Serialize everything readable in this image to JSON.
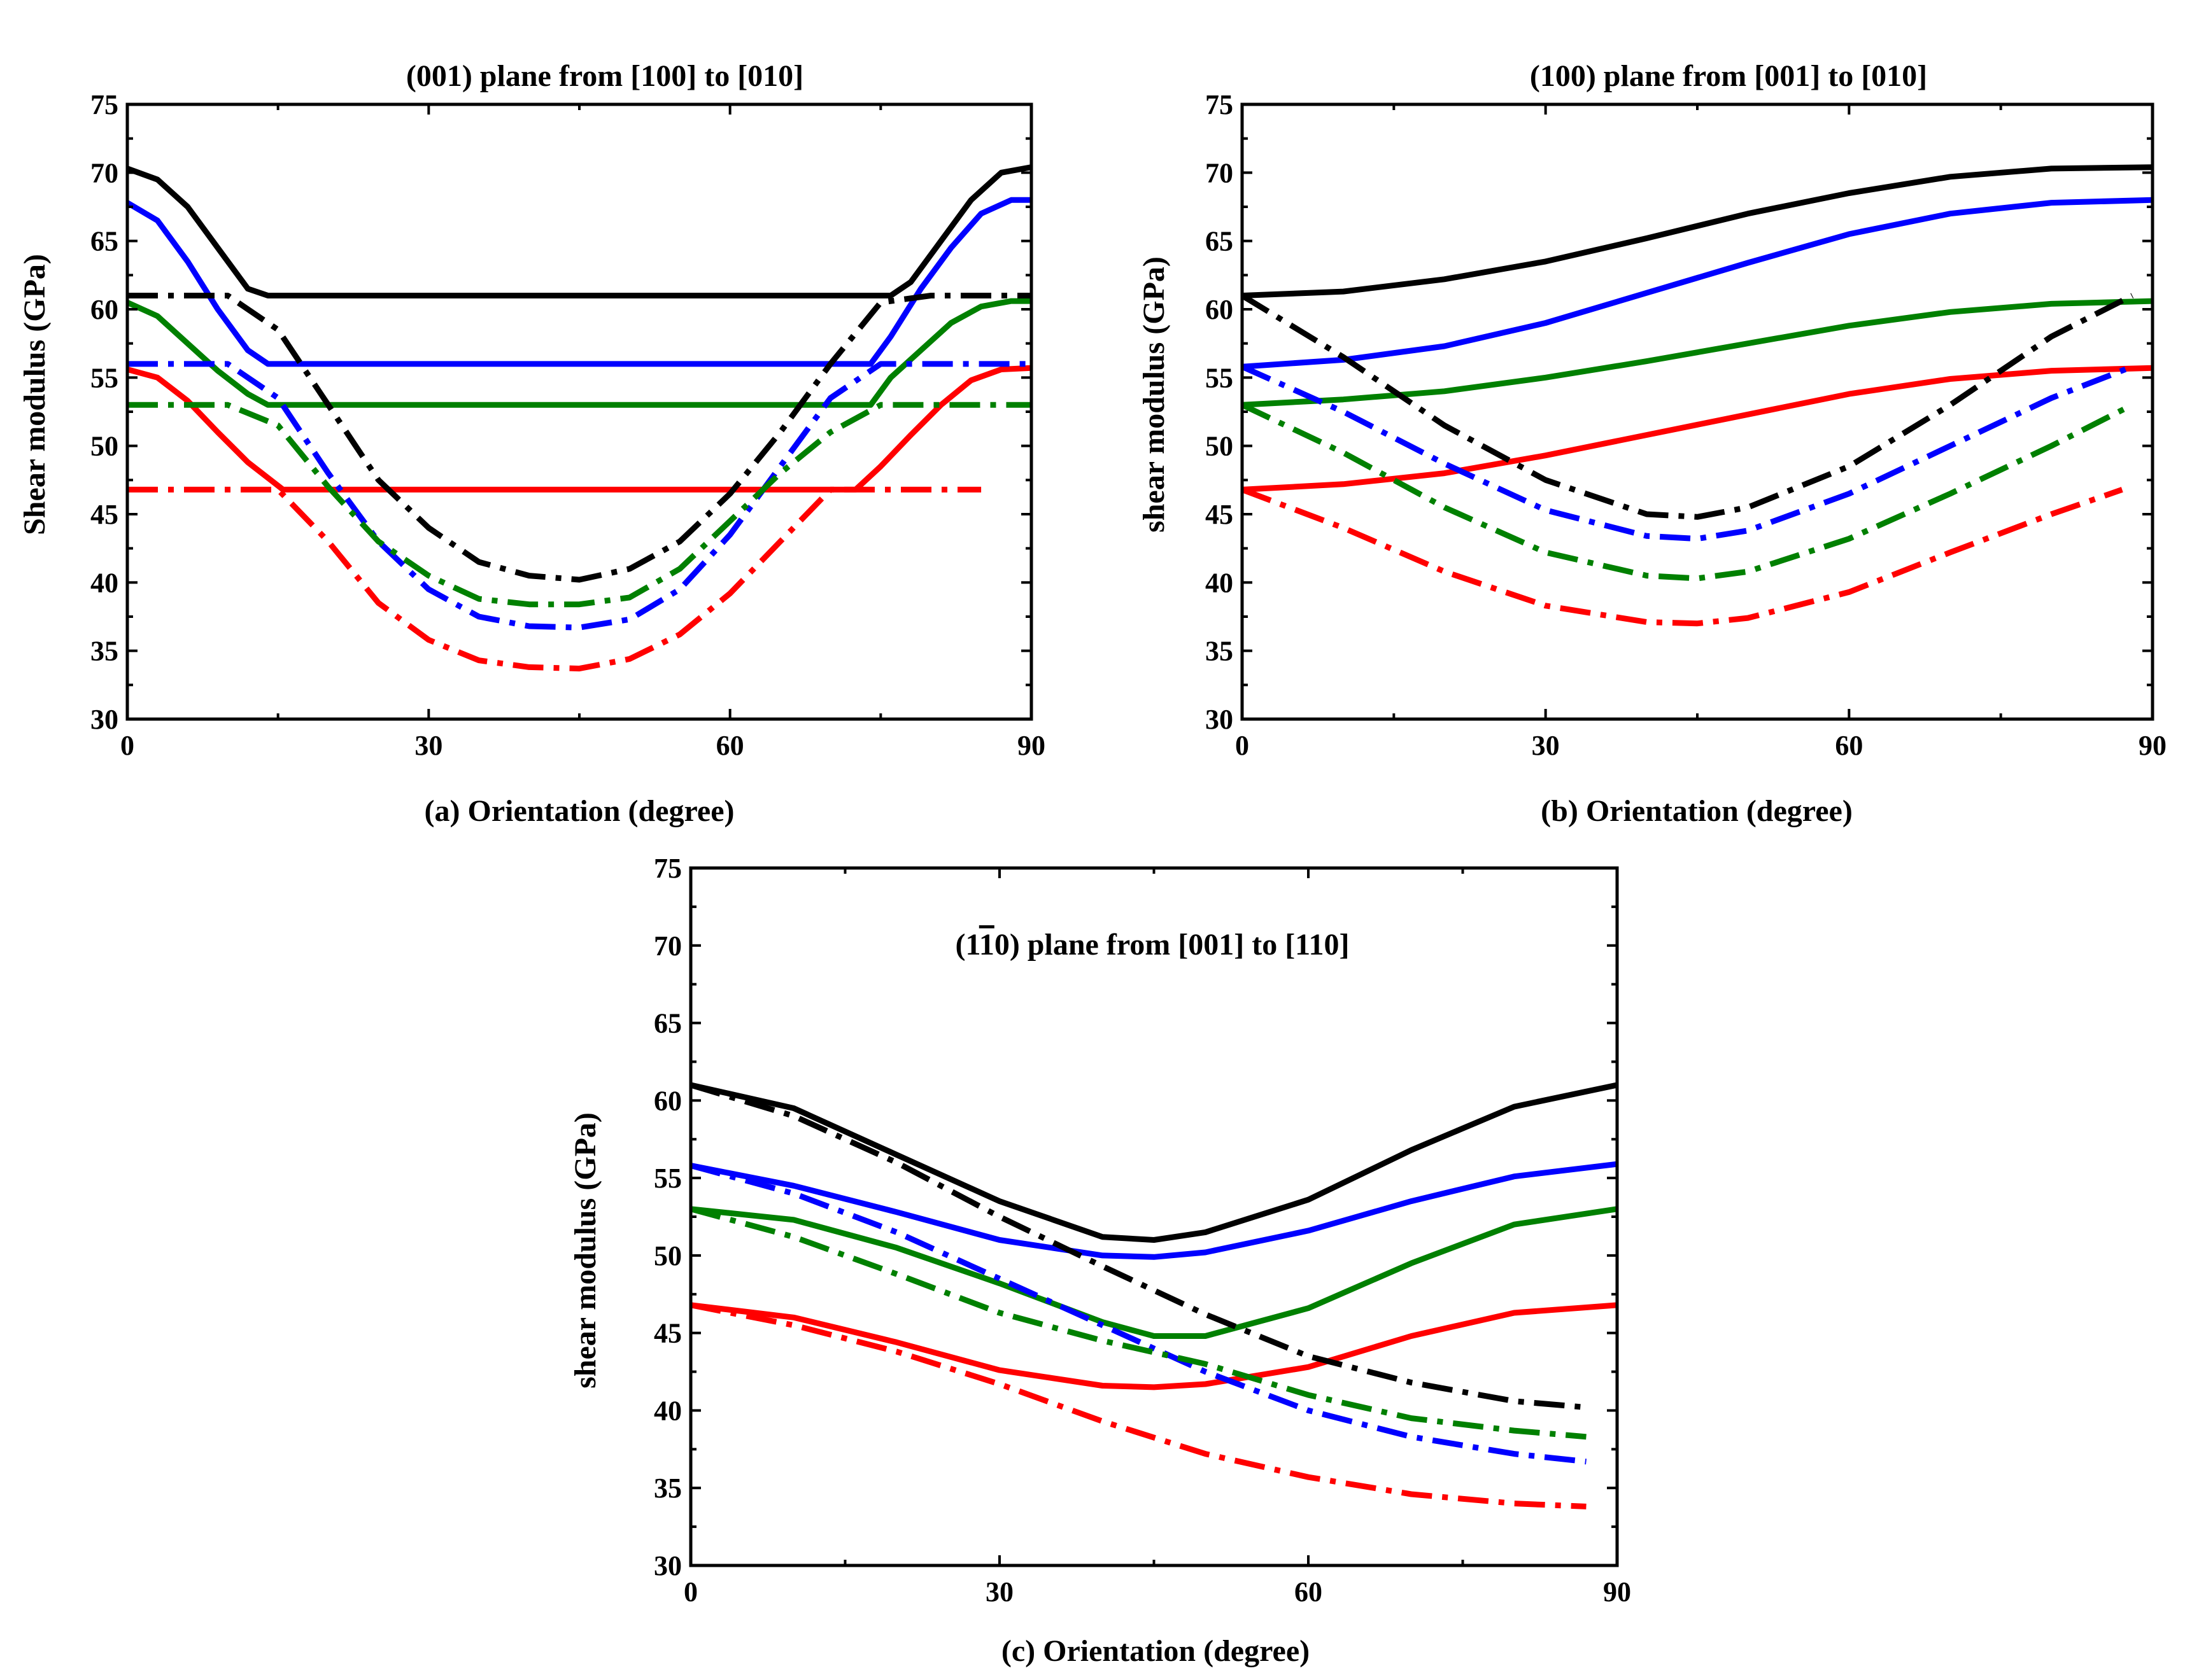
{
  "colors": {
    "black": "#000000",
    "blue": "#0000ff",
    "green": "#008000",
    "red": "#ff0000"
  },
  "chart_data": [
    {
      "type": "line",
      "title": "(001) plane from [100] to [010]",
      "xlabel": "(a) Orientation (degree)",
      "ylabel": "Shear modulus (GPa)",
      "xlim": [
        0,
        90
      ],
      "ylim": [
        30,
        75
      ],
      "xticks": [
        0,
        30,
        60,
        90
      ],
      "yticks": [
        30,
        35,
        40,
        45,
        50,
        55,
        60,
        65,
        70,
        75
      ],
      "series": [
        {
          "name": "black-solid",
          "color": "#000000",
          "style": "solid",
          "x": [
            0,
            3,
            6,
            9,
            12,
            14,
            76,
            78,
            81,
            84,
            87,
            90
          ],
          "y": [
            70.3,
            69.5,
            67.5,
            64.5,
            61.5,
            61,
            61,
            62,
            65,
            68,
            70,
            70.4
          ]
        },
        {
          "name": "blue-solid",
          "color": "#0000ff",
          "style": "solid",
          "x": [
            0,
            3,
            6,
            9,
            12,
            14,
            74,
            76,
            79,
            82,
            85,
            88,
            90
          ],
          "y": [
            67.8,
            66.5,
            63.5,
            60,
            57,
            56,
            56,
            58,
            61.5,
            64.5,
            67,
            68,
            68
          ]
        },
        {
          "name": "green-solid",
          "color": "#008000",
          "style": "solid",
          "x": [
            0,
            3,
            6,
            9,
            12,
            14,
            74,
            76,
            79,
            82,
            85,
            88,
            90
          ],
          "y": [
            60.5,
            59.5,
            57.5,
            55.5,
            53.8,
            53,
            53,
            55,
            57,
            59,
            60.2,
            60.6,
            60.6
          ]
        },
        {
          "name": "red-solid",
          "color": "#ff0000",
          "style": "solid",
          "x": [
            0,
            3,
            6,
            9,
            12,
            15.5,
            72.5,
            75,
            78,
            81,
            84,
            87,
            90
          ],
          "y": [
            55.6,
            55,
            53.3,
            51,
            48.8,
            46.8,
            46.8,
            48.5,
            50.8,
            53,
            54.8,
            55.6,
            55.7
          ]
        },
        {
          "name": "black-dashdot",
          "color": "#000000",
          "style": "dashdot",
          "x": [
            0,
            10,
            15,
            20,
            25,
            30,
            35,
            40,
            45,
            50,
            55,
            60,
            65,
            70,
            75,
            80,
            85,
            90
          ],
          "y": [
            61,
            61,
            58.5,
            53,
            47.5,
            44,
            41.5,
            40.5,
            40.2,
            41,
            43,
            46.5,
            51,
            56,
            60.5,
            61,
            61,
            61
          ]
        },
        {
          "name": "blue-dashdot",
          "color": "#0000ff",
          "style": "dashdot",
          "x": [
            0,
            10,
            15,
            20,
            25,
            30,
            35,
            40,
            45,
            50,
            55,
            60,
            65,
            70,
            75,
            80,
            85,
            90
          ],
          "y": [
            56,
            56,
            53.5,
            48,
            43,
            39.5,
            37.5,
            36.8,
            36.7,
            37.3,
            39.5,
            43.5,
            48.5,
            53.5,
            56,
            56,
            56,
            56
          ]
        },
        {
          "name": "green-dashdot",
          "color": "#008000",
          "style": "dashdot",
          "x": [
            0,
            10,
            15,
            20,
            25,
            30,
            35,
            40,
            45,
            50,
            55,
            60,
            65,
            70,
            75,
            80,
            85,
            90
          ],
          "y": [
            53,
            53,
            51.5,
            47,
            43,
            40.5,
            38.8,
            38.4,
            38.4,
            38.9,
            41,
            44.5,
            48,
            51,
            53,
            53,
            53,
            53
          ]
        },
        {
          "name": "red-dashdot",
          "color": "#ff0000",
          "style": "dashdot",
          "x": [
            0,
            15,
            20,
            25,
            30,
            35,
            40,
            45,
            50,
            55,
            60,
            65,
            70,
            75,
            80,
            85
          ],
          "y": [
            46.8,
            46.8,
            43,
            38.5,
            35.8,
            34.3,
            33.8,
            33.7,
            34.4,
            36.2,
            39.2,
            43,
            46.8,
            46.8,
            46.8,
            46.8
          ]
        }
      ]
    },
    {
      "type": "line",
      "title": "(100) plane from [001] to [010]",
      "xlabel": "(b) Orientation (degree)",
      "ylabel": "shear modulus (GPa)",
      "xlim": [
        0,
        90
      ],
      "ylim": [
        30,
        75
      ],
      "xticks": [
        0,
        30,
        60,
        90
      ],
      "yticks": [
        30,
        35,
        40,
        45,
        50,
        55,
        60,
        65,
        70,
        75
      ],
      "series": [
        {
          "name": "black-solid",
          "color": "#000000",
          "style": "solid",
          "x": [
            0,
            10,
            20,
            30,
            40,
            50,
            60,
            70,
            80,
            90
          ],
          "y": [
            61,
            61.3,
            62.2,
            63.5,
            65.2,
            67,
            68.5,
            69.7,
            70.3,
            70.4
          ]
        },
        {
          "name": "blue-solid",
          "color": "#0000ff",
          "style": "solid",
          "x": [
            0,
            10,
            20,
            30,
            40,
            50,
            60,
            70,
            80,
            90
          ],
          "y": [
            55.8,
            56.3,
            57.3,
            59,
            61.2,
            63.4,
            65.5,
            67,
            67.8,
            68
          ]
        },
        {
          "name": "green-solid",
          "color": "#008000",
          "style": "solid",
          "x": [
            0,
            10,
            20,
            30,
            40,
            50,
            60,
            70,
            80,
            90
          ],
          "y": [
            53,
            53.4,
            54,
            55,
            56.2,
            57.5,
            58.8,
            59.8,
            60.4,
            60.6
          ]
        },
        {
          "name": "red-solid",
          "color": "#ff0000",
          "style": "solid",
          "x": [
            0,
            10,
            20,
            30,
            40,
            50,
            60,
            70,
            80,
            90
          ],
          "y": [
            46.8,
            47.2,
            48,
            49.3,
            50.8,
            52.3,
            53.8,
            54.9,
            55.5,
            55.7
          ]
        },
        {
          "name": "black-dashdot",
          "color": "#000000",
          "style": "dashdot",
          "x": [
            0,
            10,
            20,
            30,
            40,
            45,
            50,
            60,
            70,
            80,
            88
          ],
          "y": [
            61,
            56.5,
            51.5,
            47.5,
            45,
            44.8,
            45.5,
            48.5,
            53,
            58,
            61
          ]
        },
        {
          "name": "blue-dashdot",
          "color": "#0000ff",
          "style": "dashdot",
          "x": [
            0,
            10,
            20,
            30,
            40,
            45,
            50,
            60,
            70,
            80,
            88
          ],
          "y": [
            55.8,
            52.5,
            48.7,
            45.3,
            43.4,
            43.2,
            43.8,
            46.5,
            50,
            53.5,
            55.8
          ]
        },
        {
          "name": "green-dashdot",
          "color": "#008000",
          "style": "dashdot",
          "x": [
            0,
            10,
            20,
            30,
            40,
            45,
            50,
            60,
            70,
            80,
            88
          ],
          "y": [
            53,
            49.5,
            45.5,
            42.2,
            40.5,
            40.3,
            40.8,
            43.2,
            46.5,
            50,
            53
          ]
        },
        {
          "name": "red-dashdot",
          "color": "#ff0000",
          "style": "dashdot",
          "x": [
            0,
            10,
            20,
            30,
            40,
            45,
            50,
            60,
            70,
            80,
            87
          ],
          "y": [
            46.8,
            44,
            40.8,
            38.3,
            37.1,
            37,
            37.4,
            39.3,
            42.2,
            45,
            46.8
          ]
        }
      ]
    },
    {
      "type": "line",
      "title": "(1ī0) plane from [001] to [110]",
      "title_parts": [
        "(1",
        "1",
        "0) plane from [001] to [110]"
      ],
      "xlabel": "(c) Orientation (degree)",
      "ylabel": "shear modulus (GPa)",
      "xlim": [
        0,
        90
      ],
      "ylim": [
        30,
        75
      ],
      "xticks": [
        0,
        30,
        60,
        90
      ],
      "yticks": [
        30,
        35,
        40,
        45,
        50,
        55,
        60,
        65,
        70,
        75
      ],
      "series": [
        {
          "name": "black-solid",
          "color": "#000000",
          "style": "solid",
          "x": [
            0,
            10,
            20,
            30,
            40,
            45,
            50,
            60,
            70,
            80,
            90
          ],
          "y": [
            61,
            59.5,
            56.5,
            53.5,
            51.2,
            51,
            51.5,
            53.6,
            56.8,
            59.6,
            61
          ]
        },
        {
          "name": "blue-solid",
          "color": "#0000ff",
          "style": "solid",
          "x": [
            0,
            10,
            20,
            30,
            40,
            45,
            50,
            60,
            70,
            80,
            90
          ],
          "y": [
            55.8,
            54.5,
            52.8,
            51,
            50,
            49.9,
            50.2,
            51.6,
            53.5,
            55.1,
            55.9
          ]
        },
        {
          "name": "green-solid",
          "color": "#008000",
          "style": "solid",
          "x": [
            0,
            10,
            20,
            30,
            40,
            45,
            50,
            60,
            70,
            80,
            90
          ],
          "y": [
            53,
            52.3,
            50.5,
            48.2,
            45.7,
            44.8,
            44.8,
            46.6,
            49.5,
            52,
            53
          ]
        },
        {
          "name": "red-solid",
          "color": "#ff0000",
          "style": "solid",
          "x": [
            0,
            10,
            20,
            30,
            40,
            45,
            50,
            60,
            70,
            80,
            90
          ],
          "y": [
            46.8,
            46,
            44.4,
            42.6,
            41.6,
            41.5,
            41.7,
            42.8,
            44.8,
            46.3,
            46.8
          ]
        },
        {
          "name": "black-dashdot",
          "color": "#000000",
          "style": "dashdot",
          "x": [
            0,
            10,
            20,
            30,
            40,
            50,
            60,
            70,
            80,
            87
          ],
          "y": [
            61,
            59,
            56,
            52.5,
            49.3,
            46.2,
            43.5,
            41.8,
            40.6,
            40.2
          ]
        },
        {
          "name": "blue-dashdot",
          "color": "#0000ff",
          "style": "dashdot",
          "x": [
            0,
            10,
            20,
            30,
            40,
            50,
            60,
            70,
            80,
            87
          ],
          "y": [
            55.8,
            54,
            51.5,
            48.5,
            45.5,
            42.5,
            40,
            38.3,
            37.2,
            36.7
          ]
        },
        {
          "name": "green-dashdot",
          "color": "#008000",
          "style": "dashdot",
          "x": [
            0,
            10,
            20,
            30,
            40,
            50,
            60,
            70,
            80,
            87
          ],
          "y": [
            53,
            51.2,
            48.8,
            46.3,
            44.5,
            43,
            41,
            39.5,
            38.7,
            38.3
          ]
        },
        {
          "name": "red-dashdot",
          "color": "#ff0000",
          "style": "dashdot",
          "x": [
            0,
            10,
            20,
            30,
            40,
            50,
            60,
            70,
            80,
            87
          ],
          "y": [
            46.8,
            45.5,
            43.8,
            41.7,
            39.3,
            37.2,
            35.7,
            34.6,
            34,
            33.8
          ]
        }
      ]
    }
  ]
}
